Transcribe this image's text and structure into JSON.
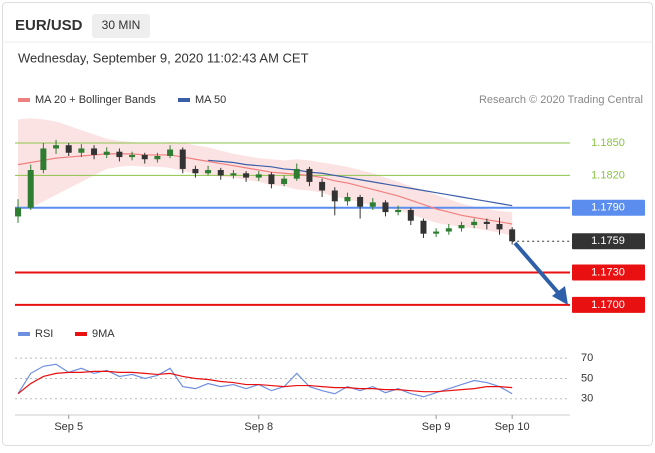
{
  "header": {
    "symbol": "EUR/USD",
    "timeframe": "30 MIN",
    "datetime": "Wednesday, September 9, 2020 11:02:43 AM CET"
  },
  "chart_data": {
    "type": "candlestick",
    "source": "Research © 2020 Trading Central",
    "up_color": "#2e7d32",
    "down_color": "#333333",
    "categories": [
      null,
      null,
      null,
      null,
      "Sep 5",
      null,
      null,
      null,
      null,
      null,
      null,
      null,
      null,
      null,
      null,
      null,
      null,
      null,
      null,
      "Sep 8",
      null,
      null,
      null,
      null,
      null,
      null,
      null,
      null,
      null,
      null,
      null,
      null,
      null,
      "Sep 9",
      null,
      null,
      null,
      null,
      null,
      "Sep 10"
    ],
    "ylim": [
      1.1686,
      1.1876
    ],
    "candles": [
      [
        1.1782,
        1.1798,
        1.1776,
        1.179
      ],
      [
        1.179,
        1.183,
        1.1788,
        1.1825
      ],
      [
        1.1825,
        1.185,
        1.1822,
        1.1845
      ],
      [
        1.1845,
        1.1853,
        1.184,
        1.1848
      ],
      [
        1.1848,
        1.185,
        1.1838,
        1.1841
      ],
      [
        1.1841,
        1.1849,
        1.1837,
        1.1845
      ],
      [
        1.1845,
        1.1848,
        1.1835,
        1.1839
      ],
      [
        1.1839,
        1.1846,
        1.1836,
        1.1842
      ],
      [
        1.1842,
        1.1845,
        1.1833,
        1.1837
      ],
      [
        1.1837,
        1.1842,
        1.1834,
        1.1839
      ],
      [
        1.1839,
        1.1841,
        1.1831,
        1.1835
      ],
      [
        1.1835,
        1.1841,
        1.1832,
        1.1838
      ],
      [
        1.1838,
        1.1848,
        1.1836,
        1.1844
      ],
      [
        1.1844,
        1.1846,
        1.1822,
        1.1826
      ],
      [
        1.1826,
        1.1829,
        1.1818,
        1.1822
      ],
      [
        1.1822,
        1.1829,
        1.182,
        1.1825
      ],
      [
        1.1825,
        1.1827,
        1.1816,
        1.182
      ],
      [
        1.182,
        1.1825,
        1.1817,
        1.1822
      ],
      [
        1.1822,
        1.1824,
        1.1814,
        1.1818
      ],
      [
        1.1818,
        1.1824,
        1.1815,
        1.1821
      ],
      [
        1.1821,
        1.1823,
        1.1808,
        1.1812
      ],
      [
        1.1812,
        1.182,
        1.181,
        1.1817
      ],
      [
        1.1817,
        1.1831,
        1.1815,
        1.1826
      ],
      [
        1.1826,
        1.1828,
        1.181,
        1.1814
      ],
      [
        1.1814,
        1.1817,
        1.18,
        1.1806
      ],
      [
        1.1806,
        1.1809,
        1.1783,
        1.1796
      ],
      [
        1.1796,
        1.1804,
        1.1792,
        1.18
      ],
      [
        1.18,
        1.1802,
        1.178,
        1.1791
      ],
      [
        1.1791,
        1.1799,
        1.1788,
        1.1795
      ],
      [
        1.1795,
        1.1797,
        1.1782,
        1.1786
      ],
      [
        1.1786,
        1.1792,
        1.1783,
        1.1788
      ],
      [
        1.1788,
        1.179,
        1.1774,
        1.1778
      ],
      [
        1.1778,
        1.178,
        1.1762,
        1.1766
      ],
      [
        1.1766,
        1.1771,
        1.1763,
        1.1768
      ],
      [
        1.1768,
        1.1775,
        1.1765,
        1.1771
      ],
      [
        1.1771,
        1.1777,
        1.1768,
        1.1774
      ],
      [
        1.1774,
        1.178,
        1.1771,
        1.1777
      ],
      [
        1.1777,
        1.178,
        1.177,
        1.1775
      ],
      [
        1.1775,
        1.1781,
        1.1765,
        1.177
      ],
      [
        1.177,
        1.1772,
        1.1756,
        1.1759
      ]
    ],
    "series": [
      {
        "name": "MA 20 + Bollinger Bands",
        "color": "#f08080",
        "values": [
          1.183,
          1.1832,
          1.1834,
          1.1836,
          1.1837,
          1.1838,
          1.1839,
          1.184,
          1.184,
          1.184,
          1.1839,
          1.1839,
          1.1839,
          1.1837,
          1.1835,
          1.1833,
          1.1831,
          1.1829,
          1.1827,
          1.1825,
          1.1823,
          1.1822,
          1.1821,
          1.182,
          1.1818,
          1.1815,
          1.1813,
          1.181,
          1.1807,
          1.1804,
          1.1801,
          1.1797,
          1.1793,
          1.1789,
          1.1786,
          1.1783,
          1.1781,
          1.1779,
          1.1777,
          1.1775
        ],
        "upper": [
          1.1872,
          1.1873,
          1.1872,
          1.187,
          1.1866,
          1.1862,
          1.1858,
          1.1854,
          1.1852,
          1.1851,
          1.185,
          1.185,
          1.1851,
          1.185,
          1.1848,
          1.1846,
          1.1843,
          1.184,
          1.1838,
          1.1836,
          1.1835,
          1.1834,
          1.1835,
          1.1834,
          1.1832,
          1.183,
          1.1828,
          1.1825,
          1.1822,
          1.1818,
          1.1814,
          1.181,
          1.1806,
          1.1802,
          1.1798,
          1.1794,
          1.1791,
          1.1789,
          1.1787,
          1.1786
        ],
        "lower": [
          1.1788,
          1.179,
          1.1796,
          1.1802,
          1.1808,
          1.1814,
          1.182,
          1.1826,
          1.1828,
          1.1829,
          1.1828,
          1.1828,
          1.1827,
          1.1824,
          1.1822,
          1.182,
          1.1819,
          1.1818,
          1.1816,
          1.1814,
          1.1811,
          1.181,
          1.1807,
          1.1806,
          1.1804,
          1.18,
          1.1798,
          1.1795,
          1.1792,
          1.179,
          1.1788,
          1.1784,
          1.178,
          1.1776,
          1.1774,
          1.1772,
          1.1771,
          1.1769,
          1.1767,
          1.1764
        ]
      },
      {
        "name": "MA 50",
        "color": "#3b5ea8",
        "values": [
          null,
          null,
          null,
          null,
          null,
          null,
          null,
          null,
          null,
          null,
          null,
          null,
          null,
          null,
          null,
          1.1834,
          1.1833,
          1.1832,
          1.183,
          1.1829,
          1.1828,
          1.1826,
          1.1825,
          1.1823,
          1.1822,
          1.182,
          1.1818,
          1.1816,
          1.1814,
          1.1812,
          1.181,
          1.1808,
          1.1806,
          1.1804,
          1.1802,
          1.18,
          1.1798,
          1.1796,
          1.1794,
          1.1792
        ]
      }
    ],
    "levels": [
      {
        "value": 1.185,
        "label": "1.1850",
        "color": "#8bc34a",
        "box": false,
        "style": "solid"
      },
      {
        "value": 1.182,
        "label": "1.1820",
        "color": "#8bc34a",
        "box": false,
        "style": "solid"
      },
      {
        "value": 1.179,
        "label": "1.1790",
        "color": "#5b8def",
        "box": true,
        "style": "solid"
      },
      {
        "value": 1.1759,
        "label": "1.1759",
        "color": "#333333",
        "box": true,
        "style": "dotted"
      },
      {
        "value": 1.173,
        "label": "1.1730",
        "color": "#e81010",
        "box": true,
        "style": "solid"
      },
      {
        "value": 1.17,
        "label": "1.1700",
        "color": "#e81010",
        "box": true,
        "style": "solid"
      }
    ],
    "rsi": {
      "ylim": [
        17,
        80
      ],
      "yticks": [
        70,
        50,
        30
      ],
      "series": [
        {
          "name": "RSI",
          "color": "#6f8fe0",
          "values": [
            35,
            55,
            62,
            64,
            56,
            60,
            55,
            58,
            52,
            54,
            50,
            53,
            60,
            42,
            40,
            45,
            42,
            44,
            40,
            44,
            38,
            42,
            55,
            42,
            38,
            35,
            42,
            38,
            42,
            36,
            40,
            35,
            32,
            36,
            40,
            44,
            48,
            46,
            42,
            35
          ]
        },
        {
          "name": "9MA",
          "color": "#e81010",
          "values": [
            35,
            45,
            52,
            55,
            56,
            56,
            57,
            57,
            56,
            56,
            55,
            54,
            55,
            52,
            50,
            49,
            47,
            46,
            44,
            44,
            43,
            42,
            43,
            43,
            42,
            41,
            41,
            40,
            40,
            39,
            39,
            38,
            37,
            37,
            38,
            39,
            40,
            42,
            42,
            41
          ]
        }
      ]
    }
  }
}
